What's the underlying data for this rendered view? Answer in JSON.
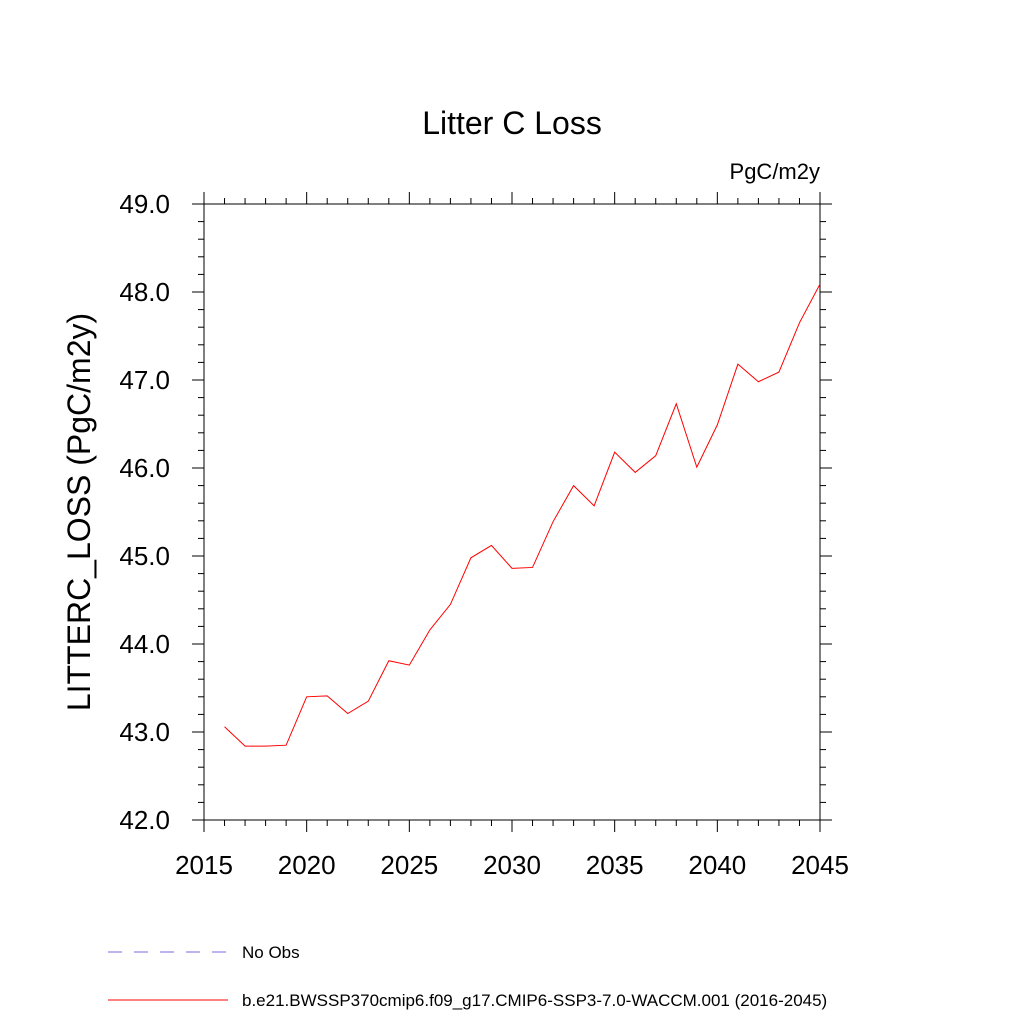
{
  "chart_data": {
    "type": "line",
    "title": "Litter C Loss",
    "units": "PgC/m2y",
    "xlabel": "",
    "ylabel": "LITTERC_LOSS  (PgC/m2y)",
    "xlim": [
      2015,
      2045
    ],
    "ylim": [
      42.0,
      49.0
    ],
    "xticks": [
      "2015",
      "2020",
      "2025",
      "2030",
      "2035",
      "2040",
      "2045"
    ],
    "yticks": [
      "42.0",
      "43.0",
      "44.0",
      "45.0",
      "46.0",
      "47.0",
      "48.0",
      "49.0"
    ],
    "grid": false,
    "legend_position": "bottom",
    "series": [
      {
        "name": "No Obs",
        "color": "#7a6ad8",
        "style": "dashed",
        "x": [],
        "values": []
      },
      {
        "name": "b.e21.BWSSP370cmip6.f09_g17.CMIP6-SSP3-7.0-WACCM.001 (2016-2045)",
        "color": "#ff0000",
        "style": "solid",
        "x": [
          2016,
          2017,
          2018,
          2019,
          2020,
          2021,
          2022,
          2023,
          2024,
          2025,
          2026,
          2027,
          2028,
          2029,
          2030,
          2031,
          2032,
          2033,
          2034,
          2035,
          2036,
          2037,
          2038,
          2039,
          2040,
          2041,
          2042,
          2043,
          2044,
          2045
        ],
        "values": [
          43.06,
          42.84,
          42.84,
          42.85,
          43.4,
          43.41,
          43.21,
          43.35,
          43.81,
          43.76,
          44.16,
          44.45,
          44.98,
          45.12,
          44.86,
          44.87,
          45.39,
          45.8,
          45.57,
          46.18,
          45.95,
          46.14,
          46.73,
          46.01,
          46.49,
          47.18,
          46.98,
          47.09,
          47.65,
          48.09
        ]
      }
    ]
  }
}
